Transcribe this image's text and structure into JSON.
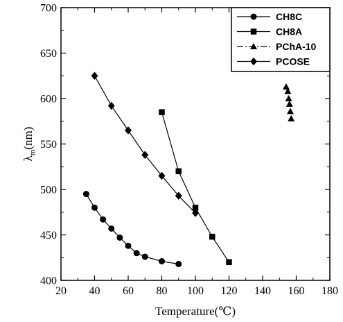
{
  "chart_data": {
    "type": "line",
    "xlabel": "Temperature(℃)",
    "ylabel_symbol": "λ",
    "ylabel_subscript": "m",
    "ylabel_unit": "(nm)",
    "xlim": [
      20,
      180
    ],
    "ylim": [
      400,
      700
    ],
    "xticks": [
      "20",
      "40",
      "60",
      "80",
      "100",
      "120",
      "140",
      "160",
      "180"
    ],
    "yticks": [
      "400",
      "450",
      "500",
      "550",
      "600",
      "650",
      "700"
    ],
    "legend_position": "top-right",
    "grid": false,
    "series": [
      {
        "name": "CH8C",
        "marker": "circle",
        "line_style": "solid",
        "x": [
          35,
          40,
          45,
          50,
          55,
          60,
          65,
          70,
          80,
          90
        ],
        "y": [
          495,
          480,
          467,
          457,
          447,
          438,
          430,
          426,
          421,
          418
        ]
      },
      {
        "name": "CH8A",
        "marker": "square",
        "line_style": "solid",
        "x": [
          80,
          90,
          100,
          110,
          120
        ],
        "y": [
          585,
          520,
          480,
          448,
          420
        ]
      },
      {
        "name": "PChA-10",
        "marker": "triangle",
        "line_style": "dash-dot",
        "x": [
          154,
          155,
          155.5,
          156,
          156.5,
          157
        ],
        "y": [
          613,
          608,
          600,
          594,
          586,
          578
        ]
      },
      {
        "name": "PCOSE",
        "marker": "diamond",
        "line_style": "solid",
        "x": [
          40,
          50,
          60,
          70,
          80,
          90,
          100
        ],
        "y": [
          625,
          592,
          565,
          538,
          515,
          493,
          474
        ]
      }
    ]
  }
}
